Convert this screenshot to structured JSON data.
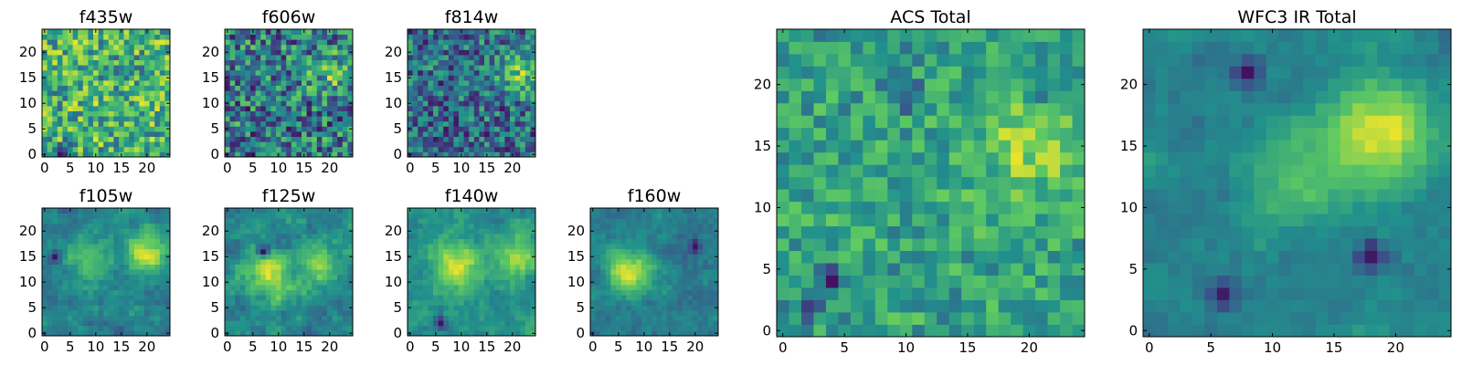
{
  "figure": {
    "colormap": "viridis",
    "colormap_stops": [
      "#440154",
      "#3b528b",
      "#21918c",
      "#5ec962",
      "#fde725"
    ],
    "background": "#ffffff"
  },
  "chart_data": [
    {
      "type": "heatmap",
      "title": "f435w",
      "grid_size": 25,
      "xlim": [
        -0.5,
        24.5
      ],
      "ylim": [
        -0.5,
        24.5
      ],
      "xticks": [
        0,
        5,
        10,
        15,
        20
      ],
      "yticks": [
        0,
        5,
        10,
        15,
        20
      ],
      "seed": 11,
      "smooth": 0,
      "noise": 0.95,
      "bright_spots": [],
      "dark_spots": [
        [
          4,
          1,
          0.6
        ],
        [
          4,
          0,
          0.6
        ]
      ]
    },
    {
      "type": "heatmap",
      "title": "f606w",
      "grid_size": 25,
      "xlim": [
        -0.5,
        24.5
      ],
      "ylim": [
        -0.5,
        24.5
      ],
      "xticks": [
        0,
        5,
        10,
        15,
        20
      ],
      "yticks": [
        0,
        5,
        10,
        15,
        20
      ],
      "seed": 22,
      "smooth": 0,
      "noise": 0.85,
      "bright_spots": [
        [
          20,
          16,
          0.35
        ]
      ],
      "dark_spots": []
    },
    {
      "type": "heatmap",
      "title": "f814w",
      "grid_size": 25,
      "xlim": [
        -0.5,
        24.5
      ],
      "ylim": [
        -0.5,
        24.5
      ],
      "xticks": [
        0,
        5,
        10,
        15,
        20
      ],
      "yticks": [
        0,
        5,
        10,
        15,
        20
      ],
      "seed": 33,
      "smooth": 0,
      "noise": 0.8,
      "bright_spots": [
        [
          21,
          16,
          0.5
        ]
      ],
      "dark_spots": []
    },
    {
      "type": "heatmap",
      "title": "f105w",
      "grid_size": 25,
      "xlim": [
        -0.5,
        24.5
      ],
      "ylim": [
        -0.5,
        24.5
      ],
      "xticks": [
        0,
        5,
        10,
        15,
        20
      ],
      "yticks": [
        0,
        5,
        10,
        15,
        20
      ],
      "seed": 44,
      "smooth": 1,
      "noise": 0.55,
      "bright_spots": [
        [
          20,
          16,
          0.6
        ],
        [
          8,
          14,
          0.3
        ]
      ],
      "dark_spots": [
        [
          2,
          15,
          0.5
        ]
      ]
    },
    {
      "type": "heatmap",
      "title": "f125w",
      "grid_size": 25,
      "xlim": [
        -0.5,
        24.5
      ],
      "ylim": [
        -0.5,
        24.5
      ],
      "xticks": [
        0,
        5,
        10,
        15,
        20
      ],
      "yticks": [
        0,
        5,
        10,
        15,
        20
      ],
      "seed": 55,
      "smooth": 1,
      "noise": 0.55,
      "bright_spots": [
        [
          8,
          12,
          0.5
        ],
        [
          18,
          14,
          0.4
        ]
      ],
      "dark_spots": [
        [
          7,
          16,
          0.6
        ]
      ]
    },
    {
      "type": "heatmap",
      "title": "f140w",
      "grid_size": 25,
      "xlim": [
        -0.5,
        24.5
      ],
      "ylim": [
        -0.5,
        24.5
      ],
      "xticks": [
        0,
        5,
        10,
        15,
        20
      ],
      "yticks": [
        0,
        5,
        10,
        15,
        20
      ],
      "seed": 66,
      "smooth": 1,
      "noise": 0.5,
      "bright_spots": [
        [
          9,
          13,
          0.55
        ],
        [
          21,
          15,
          0.4
        ]
      ],
      "dark_spots": [
        [
          6,
          2,
          0.5
        ]
      ]
    },
    {
      "type": "heatmap",
      "title": "f160w",
      "grid_size": 25,
      "xlim": [
        -0.5,
        24.5
      ],
      "ylim": [
        -0.5,
        24.5
      ],
      "xticks": [
        0,
        5,
        10,
        15,
        20
      ],
      "yticks": [
        0,
        5,
        10,
        15,
        20
      ],
      "seed": 77,
      "smooth": 1,
      "noise": 0.45,
      "bright_spots": [
        [
          7,
          12,
          0.7
        ]
      ],
      "dark_spots": [
        [
          20,
          17,
          0.4
        ]
      ]
    },
    {
      "type": "heatmap",
      "title": "ACS Total",
      "grid_size": 25,
      "xlim": [
        -0.5,
        24.5
      ],
      "ylim": [
        -0.5,
        24.5
      ],
      "xticks": [
        0,
        5,
        10,
        15,
        20
      ],
      "yticks": [
        0,
        5,
        10,
        15,
        20
      ],
      "seed": 88,
      "smooth": 0,
      "noise": 0.65,
      "bright_spots": [
        [
          20,
          15,
          0.45
        ]
      ],
      "dark_spots": [
        [
          4,
          4,
          0.6
        ],
        [
          2,
          2,
          0.5
        ],
        [
          10,
          19,
          0.5
        ],
        [
          21,
          20,
          0.5
        ]
      ]
    },
    {
      "type": "heatmap",
      "title": "WFC3 IR Total",
      "grid_size": 25,
      "xlim": [
        -0.5,
        24.5
      ],
      "ylim": [
        -0.5,
        24.5
      ],
      "xticks": [
        0,
        5,
        10,
        15,
        20
      ],
      "yticks": [
        0,
        5,
        10,
        15,
        20
      ],
      "seed": 99,
      "smooth": 1,
      "noise": 0.4,
      "bright_spots": [
        [
          19,
          16,
          0.75
        ],
        [
          12,
          12,
          0.4
        ]
      ],
      "dark_spots": [
        [
          18,
          6,
          0.6
        ],
        [
          6,
          3,
          0.5
        ],
        [
          8,
          21,
          0.5
        ]
      ]
    }
  ]
}
